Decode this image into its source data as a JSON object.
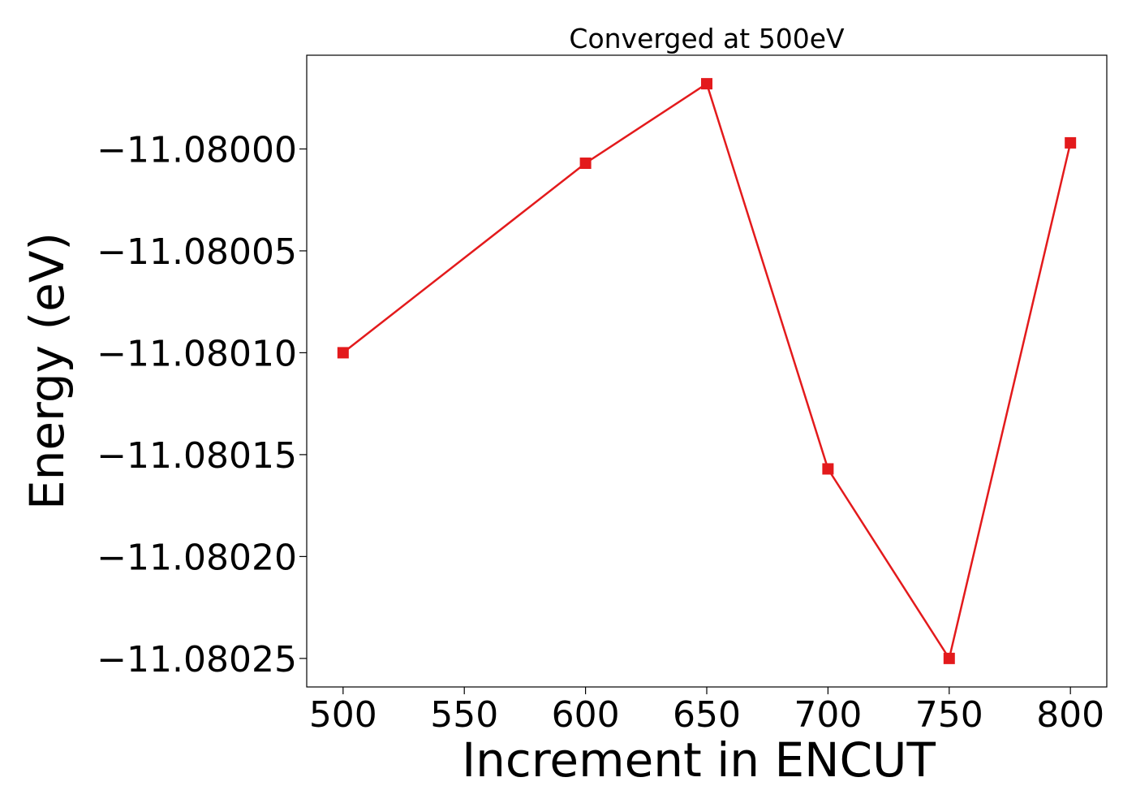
{
  "chart_data": {
    "type": "line",
    "title": "Converged at 500eV",
    "xlabel": "Increment in ENCUT",
    "ylabel": "Energy (eV)",
    "x": [
      500,
      600,
      650,
      700,
      750,
      800
    ],
    "series": [
      {
        "values": [
          -11.0801,
          -11.080007,
          -11.079968,
          -11.080157,
          -11.08025,
          -11.079997
        ],
        "color": "#e31a1c",
        "marker": "square"
      }
    ],
    "xlim": [
      485,
      815
    ],
    "ylim": [
      -11.080264,
      -11.079954
    ],
    "xticks": [
      500,
      550,
      600,
      650,
      700,
      750,
      800
    ],
    "xtick_labels": [
      "500",
      "550",
      "600",
      "650",
      "700",
      "750",
      "800"
    ],
    "yticks": [
      -11.08025,
      -11.0802,
      -11.08015,
      -11.0801,
      -11.08005,
      -11.08
    ],
    "ytick_labels": [
      "−11.08025",
      "−11.08020",
      "−11.08015",
      "−11.08010",
      "−11.08005",
      "−11.08000"
    ],
    "grid": false,
    "legend": false
  }
}
